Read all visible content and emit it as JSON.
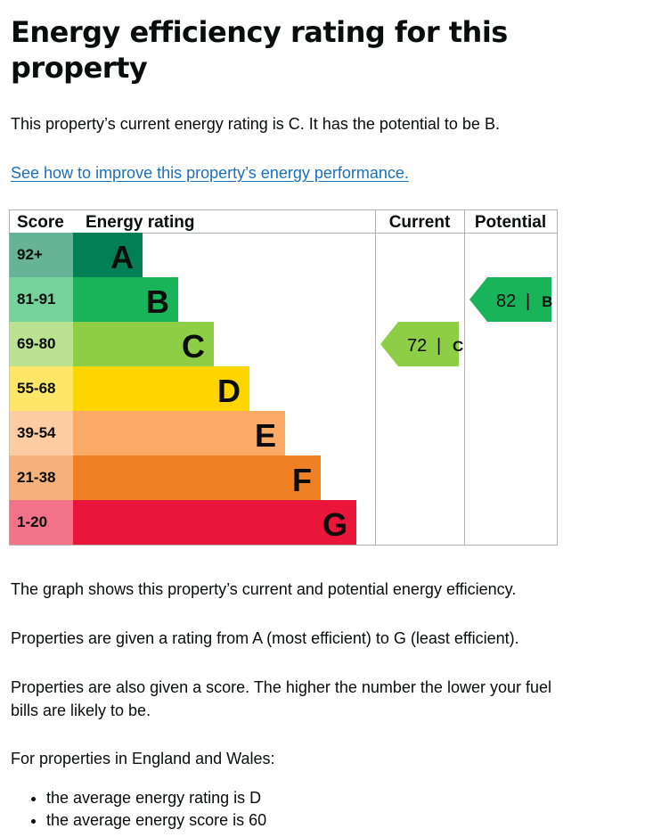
{
  "page": {
    "title": "Energy efficiency rating for this property",
    "intro": "This property’s current energy rating is C. It has the potential to be B.",
    "improve_link": "See how to improve this property’s energy performance.",
    "graph_description": "The graph shows this property’s current and potential energy efficiency.",
    "rating_explainer": "Properties are given a rating from A (most efficient) to G (least efficient).",
    "score_explainer": "Properties are also given a score. The higher the number the lower your fuel bills are likely to be.",
    "region_heading": "For properties in England and Wales:",
    "bullets": [
      "the average energy rating is D",
      "the average energy score is 60"
    ]
  },
  "chart_data": {
    "type": "table",
    "headers": {
      "score": "Score",
      "rating": "Energy rating",
      "current": "Current",
      "potential": "Potential"
    },
    "bands": [
      {
        "score": "92+",
        "letter": "A",
        "color": "#008054",
        "score_bg": "#66b398"
      },
      {
        "score": "81-91",
        "letter": "B",
        "color": "#19b459",
        "score_bg": "#75d29b"
      },
      {
        "score": "69-80",
        "letter": "C",
        "color": "#8dce46",
        "score_bg": "#bbe290"
      },
      {
        "score": "55-68",
        "letter": "D",
        "color": "#ffd500",
        "score_bg": "#ffe666"
      },
      {
        "score": "39-54",
        "letter": "E",
        "color": "#fcaa65",
        "score_bg": "#fdcca3"
      },
      {
        "score": "21-38",
        "letter": "F",
        "color": "#ef8023",
        "score_bg": "#f5b37b"
      },
      {
        "score": "1-20",
        "letter": "G",
        "color": "#e9153b",
        "score_bg": "#f27389"
      }
    ],
    "current": {
      "value": 72,
      "letter": "C",
      "color": "#8dce46"
    },
    "potential": {
      "value": 82,
      "letter": "B",
      "color": "#19b459"
    }
  }
}
